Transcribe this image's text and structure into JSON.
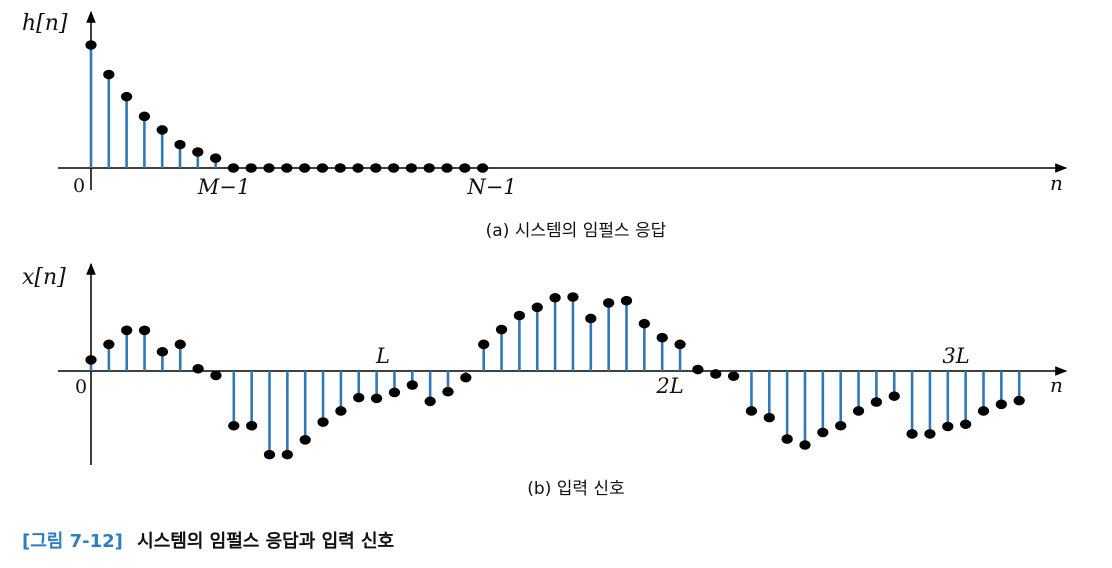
{
  "colors": {
    "stem": "#2f79b5",
    "dot": "#000000",
    "axis": "#000000",
    "figure_label": "#2b7fc1",
    "text": "#111111"
  },
  "plot_a": {
    "ylabel": "h[n]",
    "xlabel": "n",
    "origin_label": "0",
    "tick_labels": [
      {
        "text": "M−1",
        "index": 8
      },
      {
        "text": "N−1",
        "index": 22
      }
    ],
    "caption": "(a) 시스템의 임펄스 응답"
  },
  "plot_b": {
    "ylabel": "x[n]",
    "xlabel": "n",
    "origin_label": "0",
    "tick_labels": [
      {
        "text": "L",
        "index": 16,
        "side": "above"
      },
      {
        "text": "2L",
        "index": 33,
        "side": "below"
      },
      {
        "text": "3L",
        "index": 49,
        "side": "above"
      }
    ],
    "caption": "(b) 입력 신호"
  },
  "figure_caption": {
    "label": "[그림 7-12]",
    "title": "시스템의 임펄스 응답과 입력 신호"
  },
  "chart_data": [
    {
      "type": "stem",
      "title": "(a) 시스템의 임펄스 응답",
      "xlabel": "n",
      "ylabel": "h[n]",
      "n": [
        0,
        1,
        2,
        3,
        4,
        5,
        6,
        7,
        8,
        9,
        10,
        11,
        12,
        13,
        14,
        15,
        16,
        17,
        18,
        19,
        20,
        21,
        22
      ],
      "values": [
        1.0,
        0.76,
        0.58,
        0.42,
        0.31,
        0.19,
        0.13,
        0.08,
        0,
        0,
        0,
        0,
        0,
        0,
        0,
        0,
        0,
        0,
        0,
        0,
        0,
        0,
        0
      ]
    },
    {
      "type": "stem",
      "title": "(b) 입력 신호",
      "xlabel": "n",
      "ylabel": "x[n]",
      "n": [
        0,
        1,
        2,
        3,
        4,
        5,
        6,
        7,
        8,
        9,
        10,
        11,
        12,
        13,
        14,
        15,
        16,
        17,
        18,
        19,
        20,
        21,
        22,
        23,
        24,
        25,
        26,
        27,
        28,
        29,
        30,
        31,
        32,
        33,
        34,
        35,
        36,
        37,
        38,
        39,
        40,
        41,
        42,
        43,
        44,
        45,
        46,
        47,
        48,
        49,
        50,
        51,
        52
      ],
      "values": [
        0.15,
        0.36,
        0.55,
        0.55,
        0.26,
        0.36,
        0.03,
        -0.06,
        -0.74,
        -0.74,
        -1.13,
        -1.13,
        -0.93,
        -0.69,
        -0.54,
        -0.36,
        -0.37,
        -0.29,
        -0.19,
        -0.41,
        -0.28,
        -0.09,
        0.36,
        0.56,
        0.75,
        0.86,
        0.99,
        1.0,
        0.71,
        0.92,
        0.95,
        0.64,
        0.45,
        0.36,
        0.02,
        -0.04,
        -0.07,
        -0.54,
        -0.63,
        -0.92,
        -1.0,
        -0.83,
        -0.74,
        -0.54,
        -0.42,
        -0.34,
        -0.85,
        -0.85,
        -0.75,
        -0.72,
        -0.54,
        -0.45,
        -0.4
      ]
    }
  ]
}
